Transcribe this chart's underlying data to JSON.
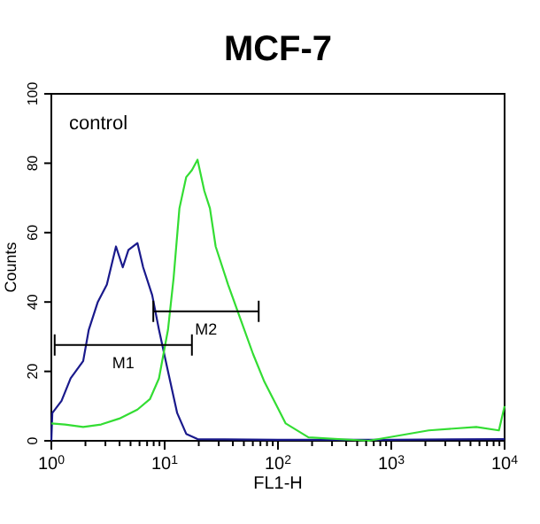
{
  "chart_data": {
    "type": "line",
    "title": "MCF-7",
    "xlabel": "FL1-H",
    "ylabel": "Counts",
    "log": "x",
    "xlim": [
      1,
      10000
    ],
    "ylim": [
      0,
      100
    ],
    "xticks": [
      {
        "value": 1,
        "label": "10$^{0}$"
      },
      {
        "value": 2,
        "label": null
      },
      {
        "value": 3,
        "label": null
      },
      {
        "value": 4,
        "label": null
      },
      {
        "value": 5,
        "label": null
      },
      {
        "value": 6,
        "label": null
      },
      {
        "value": 7,
        "label": null
      },
      {
        "value": 8,
        "label": null
      },
      {
        "value": 9,
        "label": null
      },
      {
        "value": 10,
        "label": "10$^{1}$"
      },
      {
        "value": 20,
        "label": null
      },
      {
        "value": 30,
        "label": null
      },
      {
        "value": 40,
        "label": null
      },
      {
        "value": 50,
        "label": null
      },
      {
        "value": 60,
        "label": null
      },
      {
        "value": 70,
        "label": null
      },
      {
        "value": 80,
        "label": null
      },
      {
        "value": 90,
        "label": null
      },
      {
        "value": 100,
        "label": "10$^{2}$"
      },
      {
        "value": 200,
        "label": null
      },
      {
        "value": 300,
        "label": null
      },
      {
        "value": 400,
        "label": null
      },
      {
        "value": 500,
        "label": null
      },
      {
        "value": 600,
        "label": null
      },
      {
        "value": 700,
        "label": null
      },
      {
        "value": 800,
        "label": null
      },
      {
        "value": 900,
        "label": null
      },
      {
        "value": 1000,
        "label": "10$^{3}$"
      },
      {
        "value": 2000,
        "label": null
      },
      {
        "value": 3000,
        "label": null
      },
      {
        "value": 4000,
        "label": null
      },
      {
        "value": 5000,
        "label": null
      },
      {
        "value": 6000,
        "label": null
      },
      {
        "value": 7000,
        "label": null
      },
      {
        "value": 8000,
        "label": null
      },
      {
        "value": 9000,
        "label": null
      },
      {
        "value": 10000,
        "label": "10$^{4}$"
      }
    ],
    "yticks": [
      0,
      20,
      40,
      60,
      80,
      100
    ],
    "grid": false,
    "marker": "none",
    "line_style": "solid",
    "annotations": [
      "control"
    ],
    "series": [
      {
        "color": "#1a1a8c",
        "x": [
          1,
          1.02,
          1.23,
          1.48,
          1.91,
          2.14,
          2.57,
          3.09,
          3.72,
          4.27,
          4.79,
          5.75,
          6.46,
          7.76,
          8.91,
          10.7,
          12.9,
          15.5,
          19.5,
          100,
          1000,
          10000
        ],
        "values": [
          0,
          8,
          11.5,
          18,
          23,
          32,
          40,
          45,
          56,
          50,
          55,
          57,
          50,
          42,
          32,
          20,
          8,
          2,
          0.5,
          0.3,
          0.3,
          0.5
        ]
      },
      {
        "color": "#33dd33",
        "x": [
          1,
          1.32,
          1.91,
          2.75,
          3.98,
          5.75,
          7.41,
          8.91,
          10.7,
          12,
          13.5,
          15.5,
          17.4,
          19.5,
          22.4,
          25.1,
          28.2,
          36.3,
          46.8,
          60.3,
          75.9,
          97.7,
          117,
          186,
          631,
          2138,
          5623,
          8913,
          10000
        ],
        "values": [
          5,
          4.7,
          4,
          4.7,
          6.4,
          9,
          12,
          18,
          32,
          47,
          67,
          76,
          78,
          81,
          72,
          67,
          56,
          45,
          35,
          25,
          17,
          10,
          5,
          1,
          0,
          3,
          4,
          3,
          10
        ]
      },
      {
        "name": "M1",
        "color": "#000000",
        "x": [
          1.07,
          17.4
        ],
        "values": [
          27.6,
          27.6
        ]
      },
      {
        "name": "M2",
        "color": "#000000",
        "x": [
          7.94,
          67.6
        ],
        "values": [
          37.3,
          37.3
        ]
      }
    ]
  }
}
